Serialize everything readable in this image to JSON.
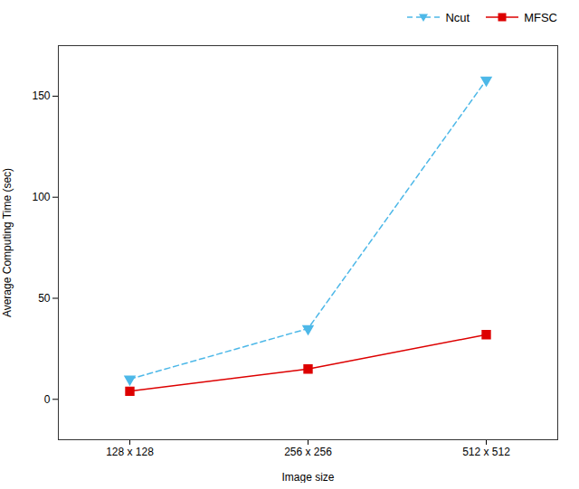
{
  "chart_data": {
    "type": "line",
    "categories": [
      "128 x 128",
      "256 x 256",
      "512 x 512"
    ],
    "series": [
      {
        "name": "Ncut",
        "color": "#4db8e8",
        "values": [
          10,
          35,
          158
        ],
        "marker": "triangle_down",
        "line_style": "dashed"
      },
      {
        "name": "MFSC",
        "color": "#dd0000",
        "values": [
          4,
          15,
          32
        ],
        "marker": "square",
        "line_style": "solid"
      }
    ],
    "xlabel": "Image size",
    "ylabel": "Average Computing Time (sec)",
    "ylim": [
      -20,
      175
    ],
    "yticks": [
      0,
      50,
      100,
      150
    ],
    "grid": false,
    "legend": "upper right"
  }
}
